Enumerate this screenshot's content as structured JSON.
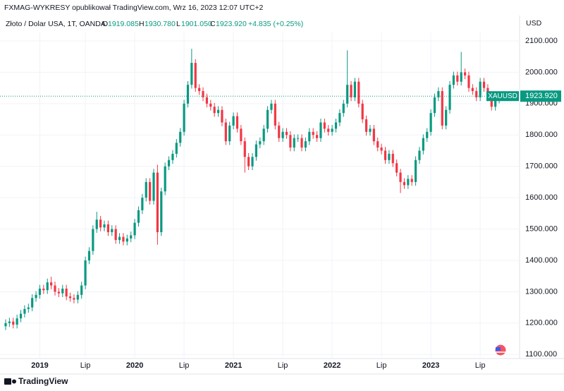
{
  "header": {
    "published": "FXMAG-WYKRESY opublikował TradingView.com, Wrz 16, 2023 12:07 UTC+2",
    "symbol": "Złoto / Dolar USA, 1T, OANDA",
    "o_key": "O",
    "o": "1919.085",
    "h_key": "H",
    "h": "1930.780",
    "l_key": "L",
    "l": "1901.050",
    "c_key": "C",
    "c": "1923.920",
    "change": "+4.835 (+0.25%)",
    "currency": "USD",
    "ticker": "XAUUSD",
    "last_label": "1923.920",
    "brand": "TradingView"
  },
  "chart_data": {
    "type": "candlestick",
    "up_color": "#089981",
    "down_color": "#f23645",
    "grid": true,
    "categories": [
      null,
      null,
      null,
      null,
      null,
      null,
      null,
      null,
      null,
      "2019",
      null,
      null,
      null,
      null,
      null,
      null,
      null,
      null,
      null,
      null,
      null,
      "Lip",
      null,
      null,
      null,
      null,
      null,
      null,
      null,
      null,
      null,
      null,
      null,
      null,
      "2020",
      null,
      null,
      null,
      null,
      null,
      null,
      null,
      null,
      null,
      null,
      null,
      null,
      "Lip",
      null,
      null,
      null,
      null,
      null,
      null,
      null,
      null,
      null,
      null,
      null,
      null,
      "2021",
      null,
      null,
      null,
      null,
      null,
      null,
      null,
      null,
      null,
      null,
      null,
      null,
      "Lip",
      null,
      null,
      null,
      null,
      null,
      null,
      null,
      null,
      null,
      null,
      null,
      null,
      "2022",
      null,
      null,
      null,
      null,
      null,
      null,
      null,
      null,
      null,
      null,
      null,
      null,
      "Lip",
      null,
      null,
      null,
      null,
      null,
      null,
      null,
      null,
      null,
      null,
      null,
      null,
      "2023",
      null,
      null,
      null,
      null,
      null,
      null,
      null,
      null,
      null,
      null,
      null,
      null,
      "Lip",
      null,
      null,
      null,
      null,
      null
    ],
    "open": [
      1190,
      1200,
      1205,
      1195,
      1215,
      1230,
      1245,
      1250,
      1280,
      1290,
      1310,
      1305,
      1330,
      1320,
      1300,
      1295,
      1310,
      1285,
      1280,
      1275,
      1290,
      1320,
      1400,
      1430,
      1500,
      1530,
      1505,
      1515,
      1490,
      1500,
      1465,
      1475,
      1460,
      1470,
      1480,
      1520,
      1560,
      1600,
      1650,
      1590,
      1680,
      1490,
      1620,
      1700,
      1720,
      1740,
      1775,
      1810,
      1900,
      1960,
      2030,
      1950,
      1940,
      1920,
      1900,
      1890,
      1870,
      1880,
      1840,
      1780,
      1830,
      1860,
      1820,
      1780,
      1730,
      1700,
      1730,
      1770,
      1780,
      1820,
      1880,
      1900,
      1830,
      1790,
      1810,
      1800,
      1760,
      1790,
      1790,
      1760,
      1780,
      1810,
      1800,
      1790,
      1840,
      1820,
      1810,
      1820,
      1840,
      1870,
      1900,
      1960,
      1920,
      1970,
      1900,
      1850,
      1810,
      1820,
      1780,
      1760,
      1750,
      1720,
      1740,
      1710,
      1680,
      1650,
      1640,
      1660,
      1650,
      1720,
      1750,
      1790,
      1810,
      1870,
      1920,
      1940,
      1830,
      1880,
      1960,
      1990,
      1970,
      2000,
      1990,
      1950,
      1940,
      1920,
      1970,
      1950,
      1920,
      1890,
      1919.085
    ],
    "high": [
      1212,
      1217,
      1217,
      1227,
      1242,
      1257,
      1262,
      1292,
      1302,
      1322,
      1322,
      1342,
      1348,
      1332,
      1312,
      1322,
      1322,
      1297,
      1292,
      1302,
      1332,
      1412,
      1442,
      1512,
      1555,
      1542,
      1527,
      1527,
      1512,
      1512,
      1487,
      1487,
      1482,
      1492,
      1532,
      1572,
      1612,
      1662,
      1662,
      1692,
      1705,
      1632,
      1712,
      1732,
      1752,
      1787,
      1822,
      1912,
      1972,
      2075,
      2042,
      1962,
      1952,
      1932,
      1912,
      1902,
      1892,
      1892,
      1852,
      1842,
      1872,
      1872,
      1832,
      1792,
      1742,
      1742,
      1782,
      1792,
      1832,
      1892,
      1912,
      1912,
      1842,
      1822,
      1822,
      1812,
      1802,
      1802,
      1802,
      1792,
      1822,
      1822,
      1812,
      1852,
      1852,
      1832,
      1832,
      1852,
      1882,
      1912,
      2070,
      1972,
      1982,
      1982,
      1912,
      1862,
      1832,
      1832,
      1792,
      1772,
      1762,
      1752,
      1752,
      1722,
      1692,
      1662,
      1672,
      1672,
      1732,
      1762,
      1802,
      1822,
      1882,
      1932,
      1952,
      1952,
      1892,
      1972,
      2002,
      2002,
      2065,
      2012,
      2002,
      1962,
      1952,
      1982,
      1982,
      1962,
      1932,
      1932,
      1930.78
    ],
    "low": [
      1178,
      1188,
      1183,
      1183,
      1203,
      1218,
      1233,
      1238,
      1268,
      1278,
      1293,
      1293,
      1308,
      1288,
      1283,
      1283,
      1273,
      1268,
      1263,
      1263,
      1278,
      1308,
      1388,
      1418,
      1488,
      1493,
      1493,
      1478,
      1478,
      1453,
      1453,
      1448,
      1448,
      1458,
      1468,
      1508,
      1548,
      1588,
      1578,
      1578,
      1450,
      1478,
      1608,
      1688,
      1708,
      1728,
      1763,
      1798,
      1888,
      1948,
      1938,
      1928,
      1908,
      1888,
      1878,
      1858,
      1858,
      1828,
      1768,
      1768,
      1818,
      1808,
      1768,
      1680,
      1688,
      1688,
      1718,
      1758,
      1768,
      1808,
      1868,
      1818,
      1778,
      1778,
      1788,
      1748,
      1748,
      1778,
      1748,
      1748,
      1768,
      1788,
      1778,
      1778,
      1808,
      1798,
      1798,
      1808,
      1828,
      1858,
      1888,
      1908,
      1908,
      1888,
      1838,
      1798,
      1798,
      1768,
      1748,
      1738,
      1708,
      1708,
      1698,
      1668,
      1615,
      1628,
      1628,
      1638,
      1638,
      1708,
      1738,
      1778,
      1798,
      1858,
      1908,
      1818,
      1818,
      1868,
      1948,
      1958,
      1958,
      1978,
      1938,
      1928,
      1908,
      1908,
      1938,
      1908,
      1878,
      1878,
      1901.05
    ],
    "close": [
      1200,
      1205,
      1195,
      1215,
      1230,
      1245,
      1250,
      1280,
      1290,
      1310,
      1305,
      1330,
      1320,
      1300,
      1295,
      1310,
      1285,
      1280,
      1275,
      1290,
      1320,
      1400,
      1430,
      1500,
      1530,
      1505,
      1515,
      1490,
      1500,
      1465,
      1475,
      1460,
      1470,
      1480,
      1520,
      1560,
      1600,
      1650,
      1590,
      1680,
      1490,
      1620,
      1700,
      1720,
      1740,
      1775,
      1810,
      1900,
      1960,
      2030,
      1950,
      1940,
      1920,
      1900,
      1890,
      1870,
      1880,
      1840,
      1780,
      1830,
      1860,
      1820,
      1780,
      1730,
      1700,
      1730,
      1770,
      1780,
      1820,
      1880,
      1900,
      1830,
      1790,
      1810,
      1800,
      1760,
      1790,
      1790,
      1760,
      1780,
      1810,
      1800,
      1790,
      1840,
      1820,
      1810,
      1820,
      1840,
      1870,
      1900,
      1960,
      1920,
      1970,
      1900,
      1850,
      1810,
      1820,
      1780,
      1760,
      1750,
      1720,
      1740,
      1710,
      1680,
      1650,
      1640,
      1660,
      1650,
      1720,
      1750,
      1790,
      1810,
      1870,
      1920,
      1940,
      1830,
      1880,
      1960,
      1990,
      1970,
      2000,
      1990,
      1950,
      1940,
      1920,
      1970,
      1950,
      1920,
      1890,
      1920,
      1923.92
    ],
    "ylim": [
      1060,
      2127
    ],
    "yticks": [
      {
        "value": 1100,
        "label": "1100.000"
      },
      {
        "value": 1200,
        "label": "1200.000"
      },
      {
        "value": 1300,
        "label": "1300.000"
      },
      {
        "value": 1400,
        "label": "1400.000"
      },
      {
        "value": 1500,
        "label": "1500.000"
      },
      {
        "value": 1600,
        "label": "1600.000"
      },
      {
        "value": 1700,
        "label": "1700.000"
      },
      {
        "value": 1800,
        "label": "1800.000"
      },
      {
        "value": 1900,
        "label": "1900.000"
      },
      {
        "value": 2000,
        "label": "2000.000"
      },
      {
        "value": 2100,
        "label": "2100.000"
      }
    ]
  }
}
